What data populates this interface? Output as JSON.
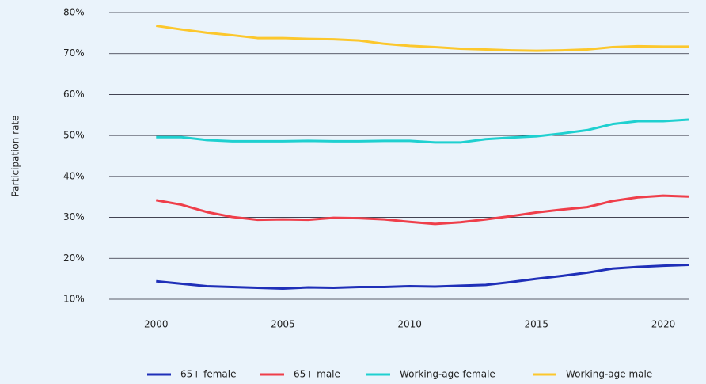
{
  "chart_data": {
    "type": "line",
    "y_label": "Participation rate",
    "x": [
      2000,
      2001,
      2002,
      2003,
      2004,
      2005,
      2006,
      2007,
      2008,
      2009,
      2010,
      2011,
      2012,
      2013,
      2014,
      2015,
      2016,
      2017,
      2018,
      2019,
      2020,
      2021
    ],
    "series": [
      {
        "name": "65+ female",
        "color": "#1f2fb8",
        "values": [
          14.4,
          13.8,
          13.2,
          13.0,
          12.8,
          12.6,
          12.9,
          12.8,
          13.0,
          13.0,
          13.2,
          13.1,
          13.3,
          13.5,
          14.2,
          15.0,
          15.7,
          16.5,
          17.5,
          17.9,
          18.2,
          18.4
        ]
      },
      {
        "name": "65+ male",
        "color": "#ef3e4a",
        "values": [
          34.2,
          33.1,
          31.3,
          30.1,
          29.4,
          29.5,
          29.4,
          29.9,
          29.8,
          29.5,
          28.9,
          28.4,
          28.8,
          29.5,
          30.3,
          31.2,
          31.9,
          32.5,
          34.0,
          34.9,
          35.3,
          35.1
        ]
      },
      {
        "name": "Working-age female",
        "color": "#1fd0d0",
        "values": [
          49.6,
          49.6,
          48.9,
          48.6,
          48.6,
          48.6,
          48.7,
          48.6,
          48.6,
          48.7,
          48.7,
          48.3,
          48.3,
          49.1,
          49.5,
          49.8,
          50.5,
          51.3,
          52.8,
          53.5,
          53.5,
          53.9
        ]
      },
      {
        "name": "Working-age male",
        "color": "#fcc72c",
        "values": [
          76.8,
          75.9,
          75.1,
          74.5,
          73.8,
          73.8,
          73.6,
          73.5,
          73.2,
          72.4,
          71.9,
          71.6,
          71.2,
          71.0,
          70.8,
          70.7,
          70.8,
          71.0,
          71.6,
          71.8,
          71.7,
          71.7
        ]
      }
    ],
    "xlim": [
      1998.15,
      2021
    ],
    "xticks": [
      2000,
      2005,
      2010,
      2015,
      2020
    ],
    "ylim": [
      10,
      80
    ],
    "yticks": [
      {
        "value": 10,
        "label": "10%"
      },
      {
        "value": 20,
        "label": "20%"
      },
      {
        "value": 30,
        "label": "30%"
      },
      {
        "value": 40,
        "label": "40%"
      },
      {
        "value": 50,
        "label": "50%"
      },
      {
        "value": 60,
        "label": "60%"
      },
      {
        "value": 70,
        "label": "70%"
      },
      {
        "value": 80,
        "label": "80%"
      }
    ],
    "grid": true,
    "legend": "bottom"
  }
}
